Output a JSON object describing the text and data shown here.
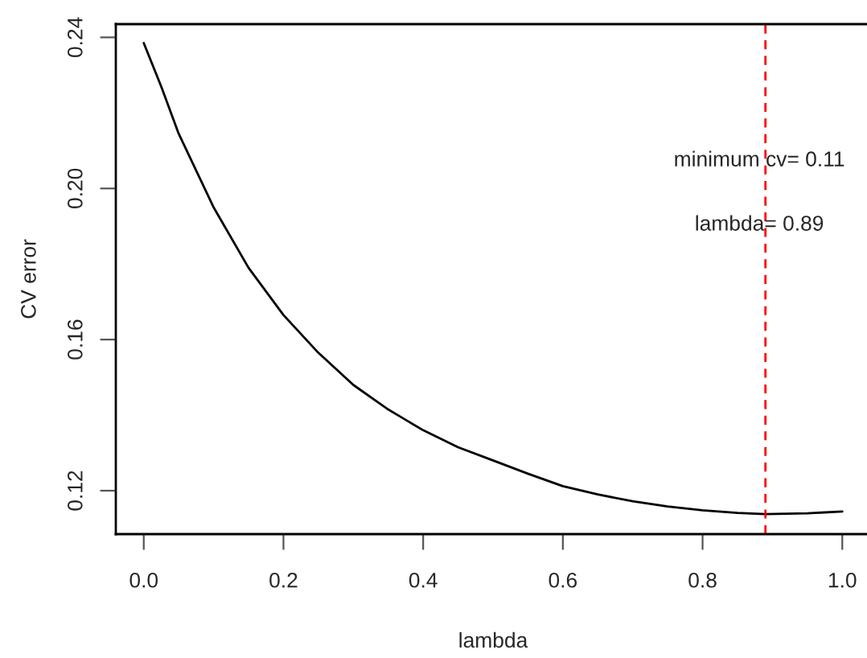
{
  "chart_data": {
    "type": "line",
    "xlabel": "lambda",
    "ylabel": "CV error",
    "x": [
      0,
      0.025,
      0.05,
      0.1,
      0.15,
      0.2,
      0.25,
      0.3,
      0.35,
      0.4,
      0.45,
      0.5,
      0.55,
      0.6,
      0.65,
      0.7,
      0.75,
      0.8,
      0.85,
      0.89,
      0.95,
      1.0
    ],
    "series": [
      {
        "color": "#000000",
        "values": [
          0.2385,
          0.227,
          0.2145,
          0.195,
          0.179,
          0.1665,
          0.1565,
          0.148,
          0.1415,
          0.136,
          0.1315,
          0.128,
          0.1245,
          0.1212,
          0.119,
          0.1172,
          0.1158,
          0.1148,
          0.1141,
          0.1138,
          0.114,
          0.1145
        ]
      }
    ],
    "xlim": [
      -0.04,
      1.04
    ],
    "xticks": [
      {
        "value": 0,
        "label": "0.0"
      },
      0.2,
      0.4,
      0.6,
      0.8,
      {
        "value": 1,
        "label": "1.0"
      }
    ],
    "ylim": [
      0.1085,
      0.2435
    ],
    "yticks": [
      0.12,
      0.16,
      {
        "value": 0.2,
        "label": "0.20"
      },
      0.24
    ],
    "ref_lines": [
      {
        "axis": "x",
        "value": 0.89,
        "color": "#ff0000",
        "line_style": "dashed"
      }
    ],
    "annotations": [
      "minimum cv= 0.11",
      "lambda= 0.89"
    ],
    "grid": false,
    "legend": false,
    "marker": "none",
    "line_style": "solid"
  }
}
